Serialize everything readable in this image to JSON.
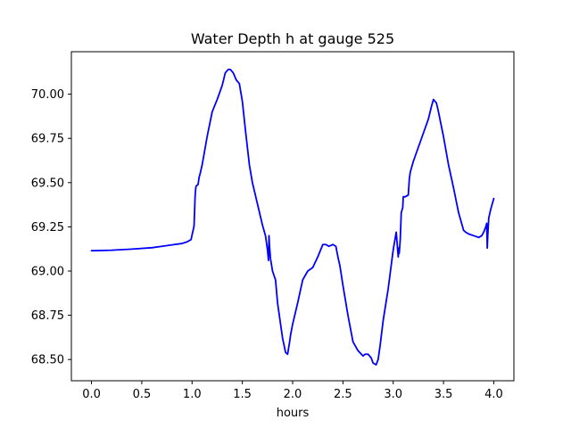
{
  "chart_data": {
    "type": "line",
    "title": "Water Depth h at gauge 525",
    "xlabel": "hours",
    "ylabel": "",
    "xlim": [
      -0.2,
      4.2
    ],
    "ylim": [
      68.38,
      70.24
    ],
    "x_ticks": [
      0.0,
      0.5,
      1.0,
      1.5,
      2.0,
      2.5,
      3.0,
      3.5,
      4.0
    ],
    "x_tick_labels": [
      "0.0",
      "0.5",
      "1.0",
      "1.5",
      "2.0",
      "2.5",
      "3.0",
      "3.5",
      "4.0"
    ],
    "y_ticks": [
      68.5,
      68.75,
      69.0,
      69.25,
      69.5,
      69.75,
      70.0
    ],
    "y_tick_labels": [
      "68.50",
      "68.75",
      "69.00",
      "69.25",
      "69.50",
      "69.75",
      "70.00"
    ],
    "grid": false,
    "series": [
      {
        "color": "#0000ff",
        "x": [
          0.0,
          0.2,
          0.4,
          0.6,
          0.7,
          0.8,
          0.9,
          0.95,
          0.99,
          1.02,
          1.03,
          1.035,
          1.04,
          1.06,
          1.07,
          1.08,
          1.1,
          1.15,
          1.2,
          1.25,
          1.3,
          1.33,
          1.36,
          1.38,
          1.41,
          1.44,
          1.47,
          1.5,
          1.53,
          1.57,
          1.6,
          1.65,
          1.7,
          1.73,
          1.75,
          1.76,
          1.765,
          1.77,
          1.78,
          1.8,
          1.83,
          1.85,
          1.88,
          1.9,
          1.93,
          1.95,
          1.97,
          1.98,
          2.0,
          2.05,
          2.1,
          2.15,
          2.2,
          2.25,
          2.3,
          2.33,
          2.36,
          2.4,
          2.43,
          2.45,
          2.47,
          2.5,
          2.55,
          2.6,
          2.65,
          2.7,
          2.72,
          2.75,
          2.78,
          2.8,
          2.83,
          2.85,
          2.87,
          2.9,
          2.95,
          3.0,
          3.03,
          3.05,
          3.055,
          3.06,
          3.07,
          3.08,
          3.09,
          3.095,
          3.1,
          3.12,
          3.15,
          3.16,
          3.17,
          3.2,
          3.25,
          3.3,
          3.35,
          3.38,
          3.4,
          3.43,
          3.45,
          3.5,
          3.55,
          3.6,
          3.65,
          3.7,
          3.72,
          3.75,
          3.8,
          3.85,
          3.88,
          3.9,
          3.92,
          3.93,
          3.935,
          3.94,
          3.95,
          3.97,
          4.0
        ],
        "y": [
          69.115,
          69.118,
          69.124,
          69.132,
          69.14,
          69.148,
          69.156,
          69.165,
          69.178,
          69.255,
          69.42,
          69.46,
          69.48,
          69.49,
          69.53,
          69.55,
          69.6,
          69.76,
          69.9,
          69.97,
          70.05,
          70.12,
          70.14,
          70.14,
          70.12,
          70.08,
          70.06,
          69.96,
          69.8,
          69.6,
          69.5,
          69.38,
          69.26,
          69.2,
          69.12,
          69.06,
          69.2,
          69.14,
          69.07,
          69.0,
          68.95,
          68.82,
          68.7,
          68.62,
          68.54,
          68.53,
          68.6,
          68.64,
          68.7,
          68.82,
          68.95,
          69.0,
          69.02,
          69.08,
          69.15,
          69.15,
          69.14,
          69.15,
          69.14,
          69.08,
          69.03,
          68.92,
          68.75,
          68.6,
          68.55,
          68.52,
          68.53,
          68.53,
          68.51,
          68.48,
          68.47,
          68.5,
          68.58,
          68.72,
          68.9,
          69.12,
          69.22,
          69.08,
          69.13,
          69.1,
          69.18,
          69.33,
          69.35,
          69.36,
          69.42,
          69.42,
          69.43,
          69.52,
          69.56,
          69.62,
          69.7,
          69.78,
          69.86,
          69.93,
          69.97,
          69.95,
          69.9,
          69.76,
          69.6,
          69.47,
          69.33,
          69.23,
          69.22,
          69.21,
          69.2,
          69.19,
          69.2,
          69.22,
          69.25,
          69.27,
          69.13,
          69.2,
          69.3,
          69.35,
          69.41
        ]
      }
    ]
  }
}
